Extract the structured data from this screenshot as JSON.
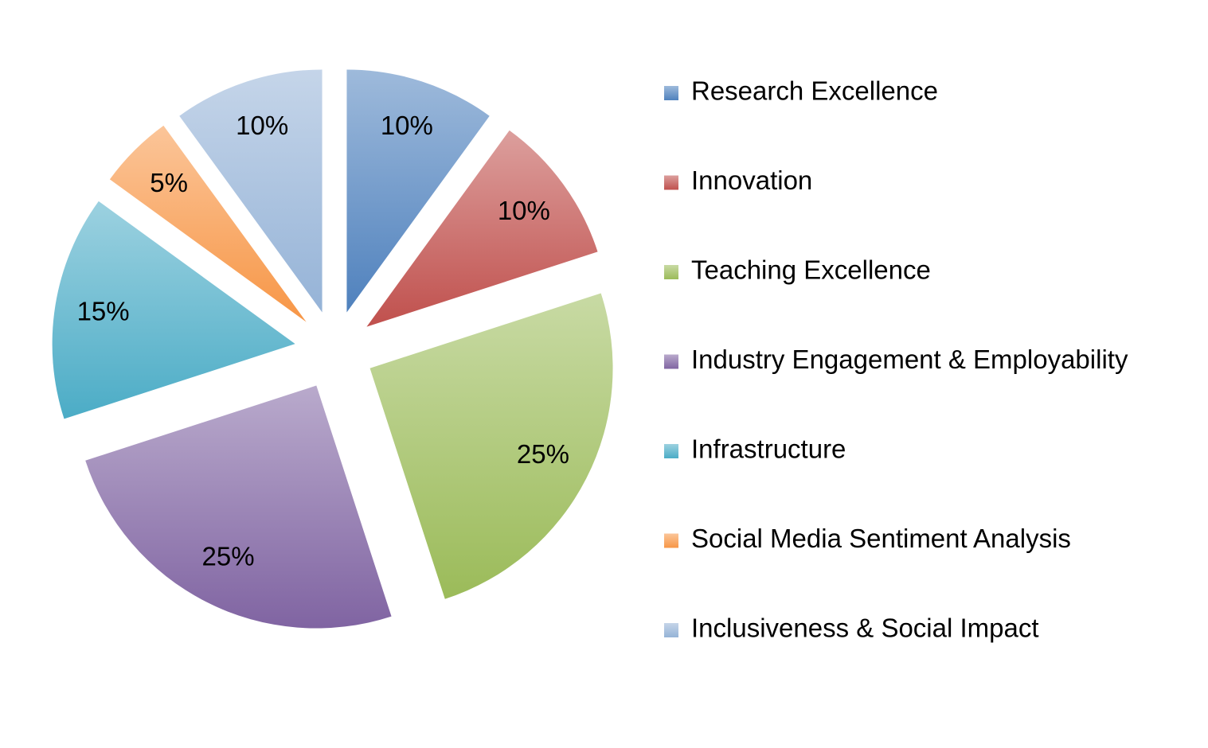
{
  "chart_data": {
    "type": "pie",
    "categories": [
      "Research Excellence",
      "Innovation",
      "Teaching Excellence",
      "Industry Engagement & Employability",
      "Infrastructure",
      "Social Media Sentiment Analysis",
      "Inclusiveness & Social Impact"
    ],
    "values": [
      10,
      10,
      25,
      25,
      15,
      5,
      10
    ],
    "value_labels": [
      "10%",
      "10%",
      "25%",
      "25%",
      "15%",
      "5%",
      "10%"
    ],
    "colors": [
      "#4f81bd",
      "#c0504d",
      "#9bbb59",
      "#8064a2",
      "#4bacc6",
      "#f79646",
      "#95b3d7"
    ],
    "legend": "right"
  }
}
